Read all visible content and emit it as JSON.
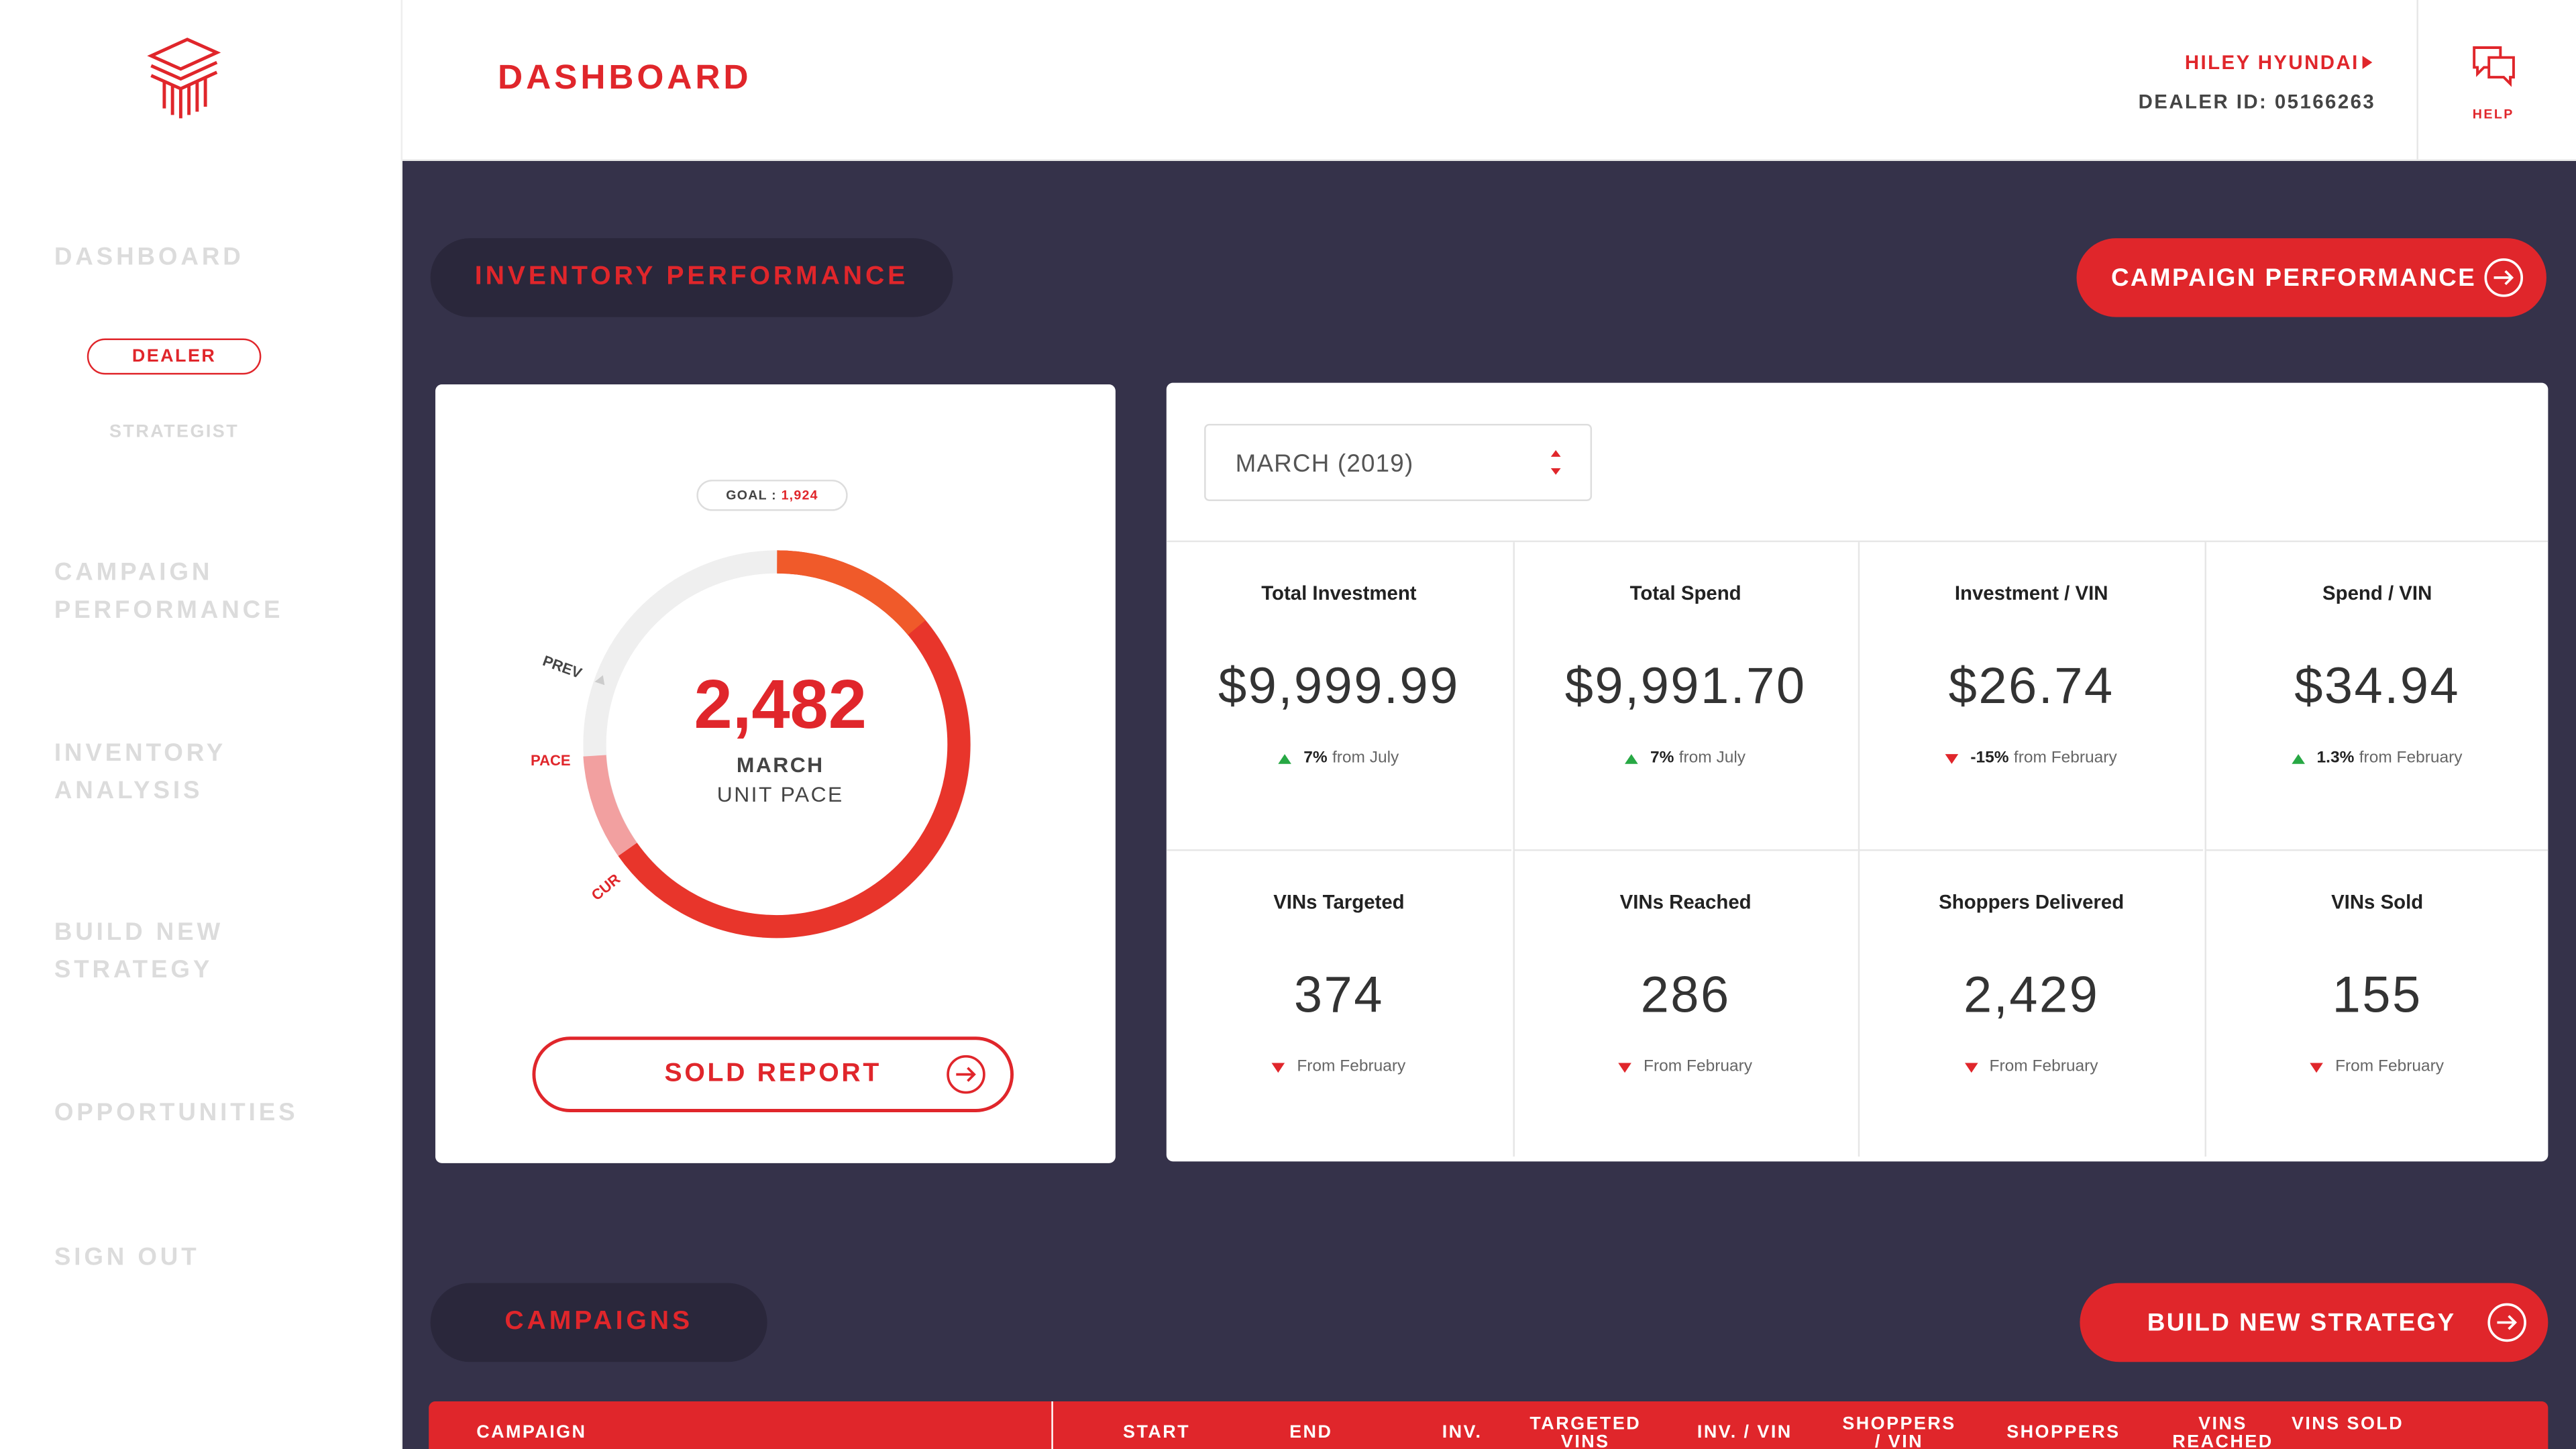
{
  "header": {
    "title": "DASHBOARD",
    "dealer_name": "HILEY HYUNDAI",
    "dealer_id": "DEALER ID: 05166263",
    "help": "HELP"
  },
  "sidebar": {
    "items": [
      "DASHBOARD",
      "CAMPAIGN PERFORMANCE",
      "INVENTORY ANALYSIS",
      "BUILD NEW STRATEGY",
      "OPPORTUNITIES",
      "SIGN OUT"
    ],
    "sub_items": [
      "DEALER",
      "STRATEGIST"
    ]
  },
  "inventory": {
    "section_title": "INVENTORY PERFORMANCE",
    "campaign_button": "CAMPAIGN PERFORMANCE",
    "gauge": {
      "goal_label": "GOAL :",
      "goal": "1,924",
      "value": "2,482",
      "month": "MARCH",
      "caption": "UNIT PACE",
      "prev": "PREV",
      "pace": "PACE",
      "cur": "CUR"
    },
    "sold_report": "SOLD REPORT",
    "period": "MARCH (2019)",
    "metrics": [
      {
        "label": "Total Investment",
        "value": "$9,999.99",
        "change": "7%",
        "note": "from July"
      },
      {
        "label": "Total Spend",
        "value": "$9,991.70",
        "change": "7%",
        "note": "from July"
      },
      {
        "label": "Investment / VIN",
        "value": "$26.74",
        "change": "-15%",
        "note": "from February"
      },
      {
        "label": "Spend / VIN",
        "value": "$34.94",
        "change": "1.3%",
        "note": "from February"
      },
      {
        "label": "VINs Targeted",
        "value": "374",
        "note": "From February"
      },
      {
        "label": "VINs Reached",
        "value": "286",
        "note": "From February"
      },
      {
        "label": "Shoppers Delivered",
        "value": "2,429",
        "note": "From February"
      },
      {
        "label": "VINs Sold",
        "value": "155",
        "note": "From February"
      }
    ]
  },
  "campaigns": {
    "section_title": "CAMPAIGNS",
    "build_button": "BUILD NEW STRATEGY",
    "columns": [
      "CAMPAIGN",
      "START",
      "END",
      "INV.",
      "TARGETED VINS",
      "INV. / VIN",
      "SHOPPERS / VIN",
      "SHOPPERS",
      "VINS REACHED",
      "VINS SOLD"
    ]
  }
}
